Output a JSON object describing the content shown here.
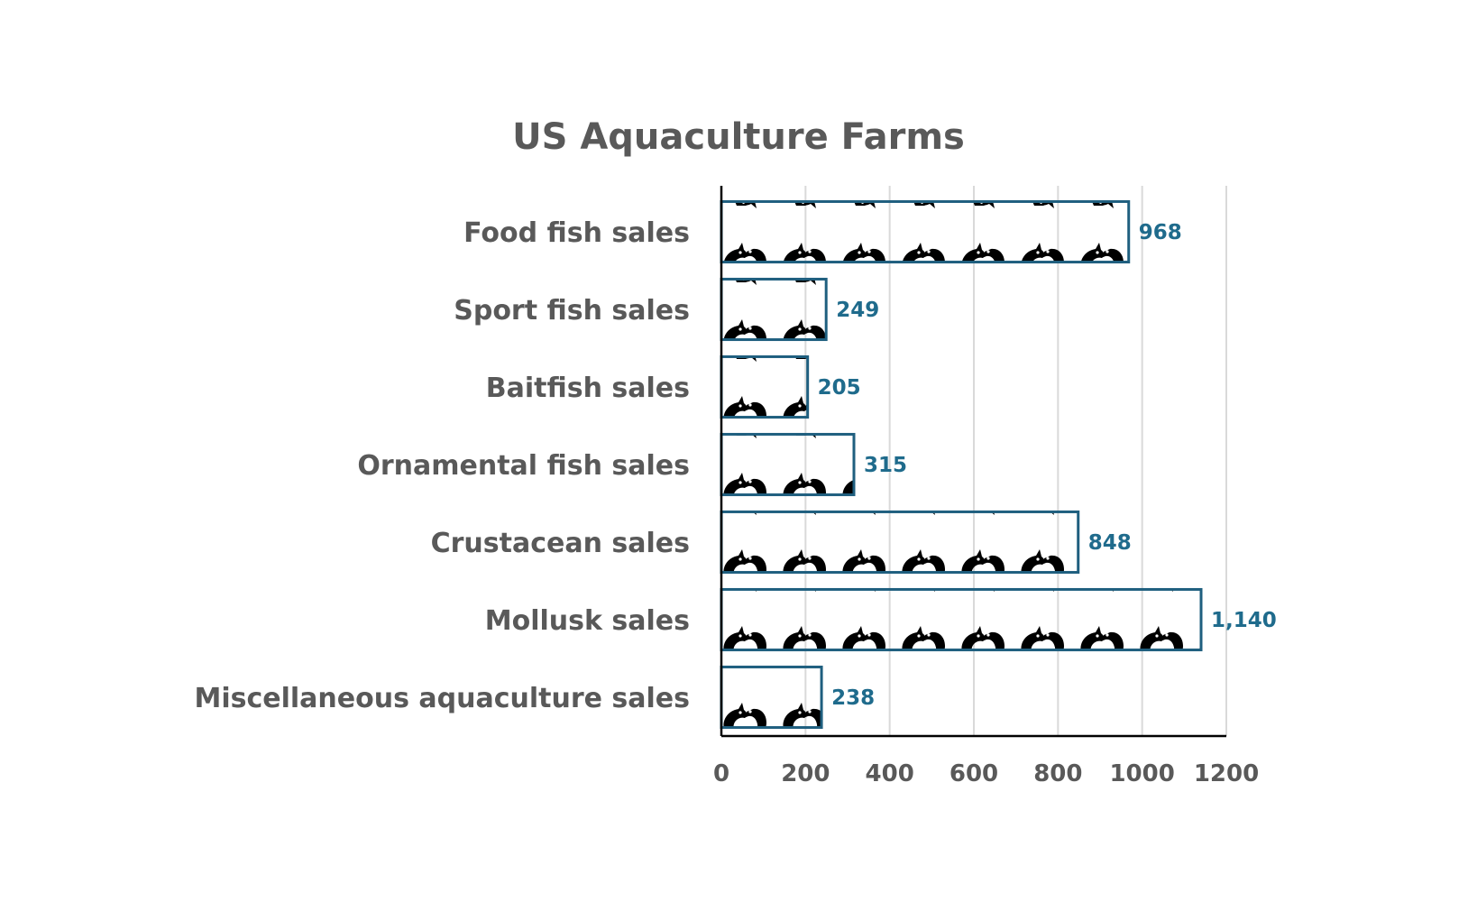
{
  "chart_data": {
    "type": "bar",
    "orientation": "horizontal",
    "title": "US Aquaculture Farms",
    "xlabel": "",
    "ylabel": "",
    "categories": [
      "Food fish sales",
      "Sport fish sales",
      "Baitfish sales",
      "Ornamental fish sales",
      "Crustacean sales",
      "Mollusk sales",
      "Miscellaneous aquaculture sales"
    ],
    "values": [
      968,
      249,
      205,
      315,
      848,
      1140,
      238
    ],
    "data_labels": [
      "968",
      "249",
      "205",
      "315",
      "848",
      "1,140",
      "238"
    ],
    "xlim": [
      0,
      1200
    ],
    "x_ticks": [
      "0",
      "200",
      "400",
      "600",
      "800",
      "1000",
      "1200"
    ],
    "grid": "vertical",
    "legend": "none",
    "bar_fill": "fish pictogram pattern",
    "icon": "fish-pair-icon"
  },
  "colors": {
    "bar_border": "#1f5f7f",
    "data_label": "#1f6b8c",
    "text": "#595959",
    "grid": "#d9d9d9",
    "axis": "#000000",
    "icon": "#000000"
  }
}
